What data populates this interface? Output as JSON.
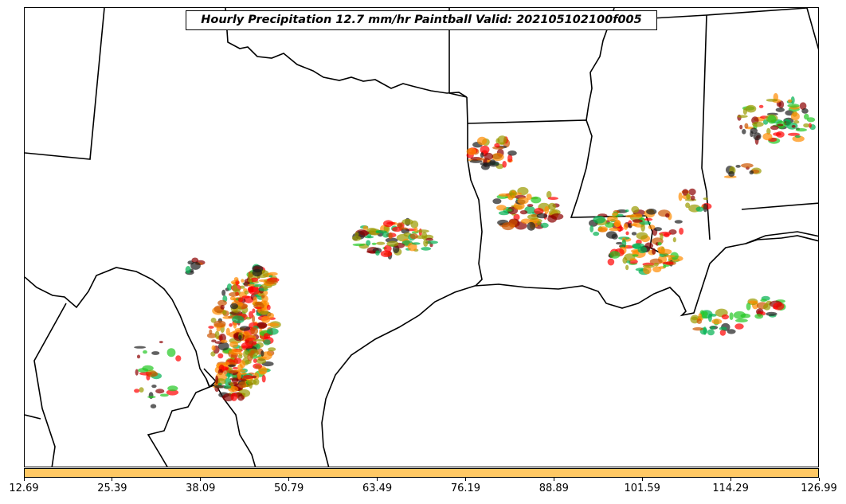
{
  "title": "Hourly Precipitation 12.7 mm/hr Paintball Valid: 202105102100f005",
  "colors": {
    "member_colors": [
      "#00b050",
      "#ff0000",
      "#ff8c00",
      "#9a9a00",
      "#8b0000",
      "#1e1e1e",
      "#22c822",
      "#cc5500"
    ],
    "colorbar_fill": "#ffc864",
    "land_outline": "#000000"
  },
  "colorbar": {
    "tick_labels": [
      "12.69",
      "25.39",
      "38.09",
      "50.79",
      "63.49",
      "76.19",
      "88.89",
      "101.59",
      "114.29",
      "126.99"
    ]
  }
}
